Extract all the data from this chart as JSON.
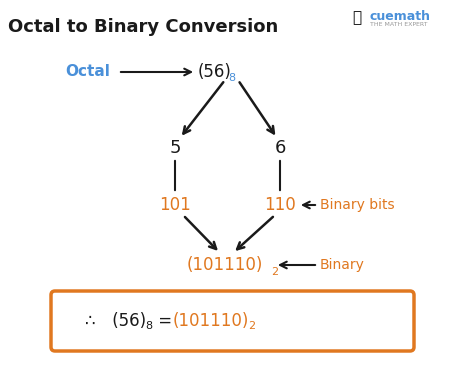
{
  "title": "Octal to Binary Conversion",
  "title_fontsize": 13,
  "title_color": "#1a1a1a",
  "bg_color": "#ffffff",
  "octal_label": "Octal",
  "octal_label_color": "#4a90d9",
  "octal_value": "(56)",
  "octal_sub": "8",
  "octal_sub_color": "#4a90d9",
  "digit_left": "5",
  "digit_right": "6",
  "digit_color": "#1a1a1a",
  "binary_left": "101",
  "binary_right": "110",
  "binary_color": "#e07820",
  "binary_bottom": "(101110)",
  "binary_bottom_sub": "2",
  "binary_bottom_color": "#e07820",
  "binary_bits_label": "Binary bits",
  "binary_bits_color": "#e07820",
  "binary_label": "Binary",
  "binary_label_color": "#e07820",
  "arrow_color": "#1a1a1a",
  "box_edgecolor": "#e07820",
  "conc_therefore": "∴",
  "conc_56": " (56)",
  "conc_8": "8",
  "conc_eq": " = ",
  "conc_101110": "(101110)",
  "conc_2": "2",
  "conc_black_color": "#1a1a1a",
  "conc_orange_color": "#e07820",
  "cuemath_text": "cuemath",
  "cuemath_sub": "THE MATH EXPERT",
  "cuemath_color": "#4a90d9",
  "cuemath_sub_color": "#999999"
}
